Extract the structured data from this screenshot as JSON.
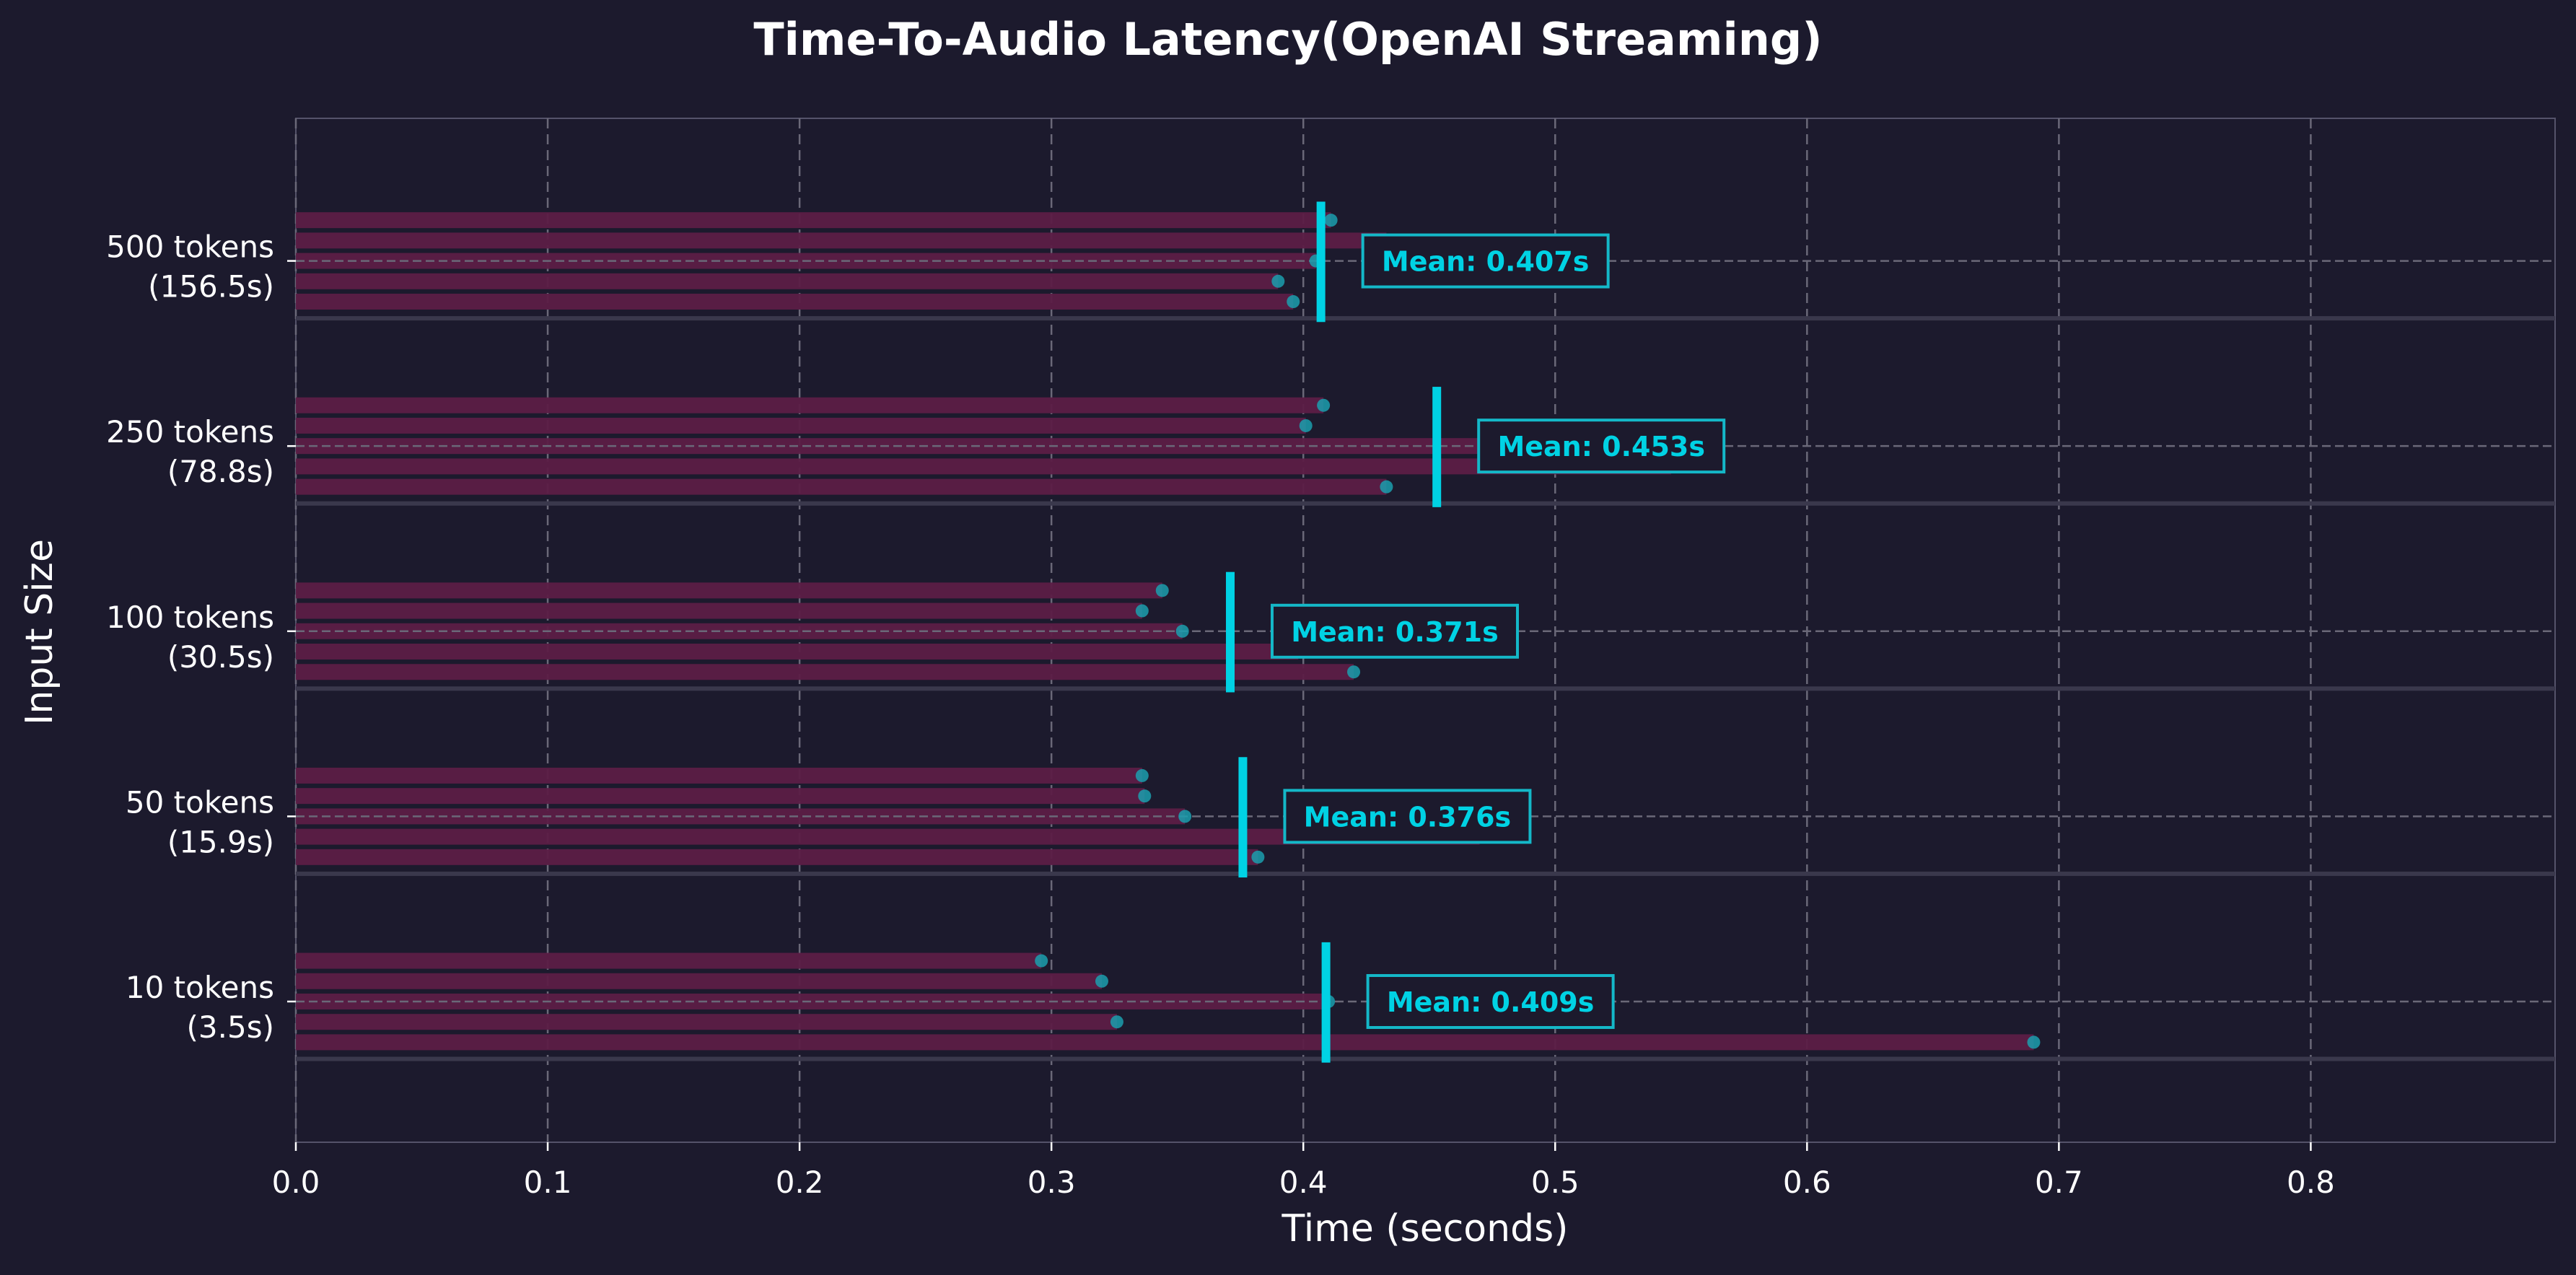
{
  "chart_data": {
    "type": "bar",
    "orientation": "horizontal",
    "title": "Time-To-Audio Latency(OpenAI Streaming)",
    "xlabel": "Time (seconds)",
    "ylabel": "Input Size",
    "xlim": [
      0,
      0.897
    ],
    "xticks": [
      "0.0",
      "0.1",
      "0.2",
      "0.3",
      "0.4",
      "0.5",
      "0.6",
      "0.7",
      "0.8"
    ],
    "grid": true,
    "categories": [
      {
        "line1": "10 tokens",
        "line2": "(3.5s)"
      },
      {
        "line1": "50 tokens",
        "line2": "(15.9s)"
      },
      {
        "line1": "100 tokens",
        "line2": "(30.5s)"
      },
      {
        "line1": "250 tokens",
        "line2": "(78.8s)"
      },
      {
        "line1": "500 tokens",
        "line2": "(156.5s)"
      }
    ],
    "runs": [
      [
        0.296,
        0.32,
        0.41,
        0.326,
        0.69
      ],
      [
        0.336,
        0.337,
        0.353,
        0.47,
        0.382
      ],
      [
        0.344,
        0.336,
        0.352,
        0.398,
        0.42
      ],
      [
        0.408,
        0.401,
        0.477,
        0.546,
        0.433
      ],
      [
        0.411,
        0.433,
        0.405,
        0.39,
        0.396
      ]
    ],
    "means": [
      0.409,
      0.376,
      0.371,
      0.453,
      0.407
    ],
    "mean_labels": [
      "Mean: 0.409s",
      "Mean: 0.376s",
      "Mean: 0.371s",
      "Mean: 0.453s",
      "Mean: 0.407s"
    ],
    "colors": {
      "background": "#1c1a2d",
      "bar": "#5c1e46",
      "dot": "#1b9fae",
      "mean": "#00d2e4",
      "text": "#ffffff",
      "grid": "#6a6878"
    }
  }
}
